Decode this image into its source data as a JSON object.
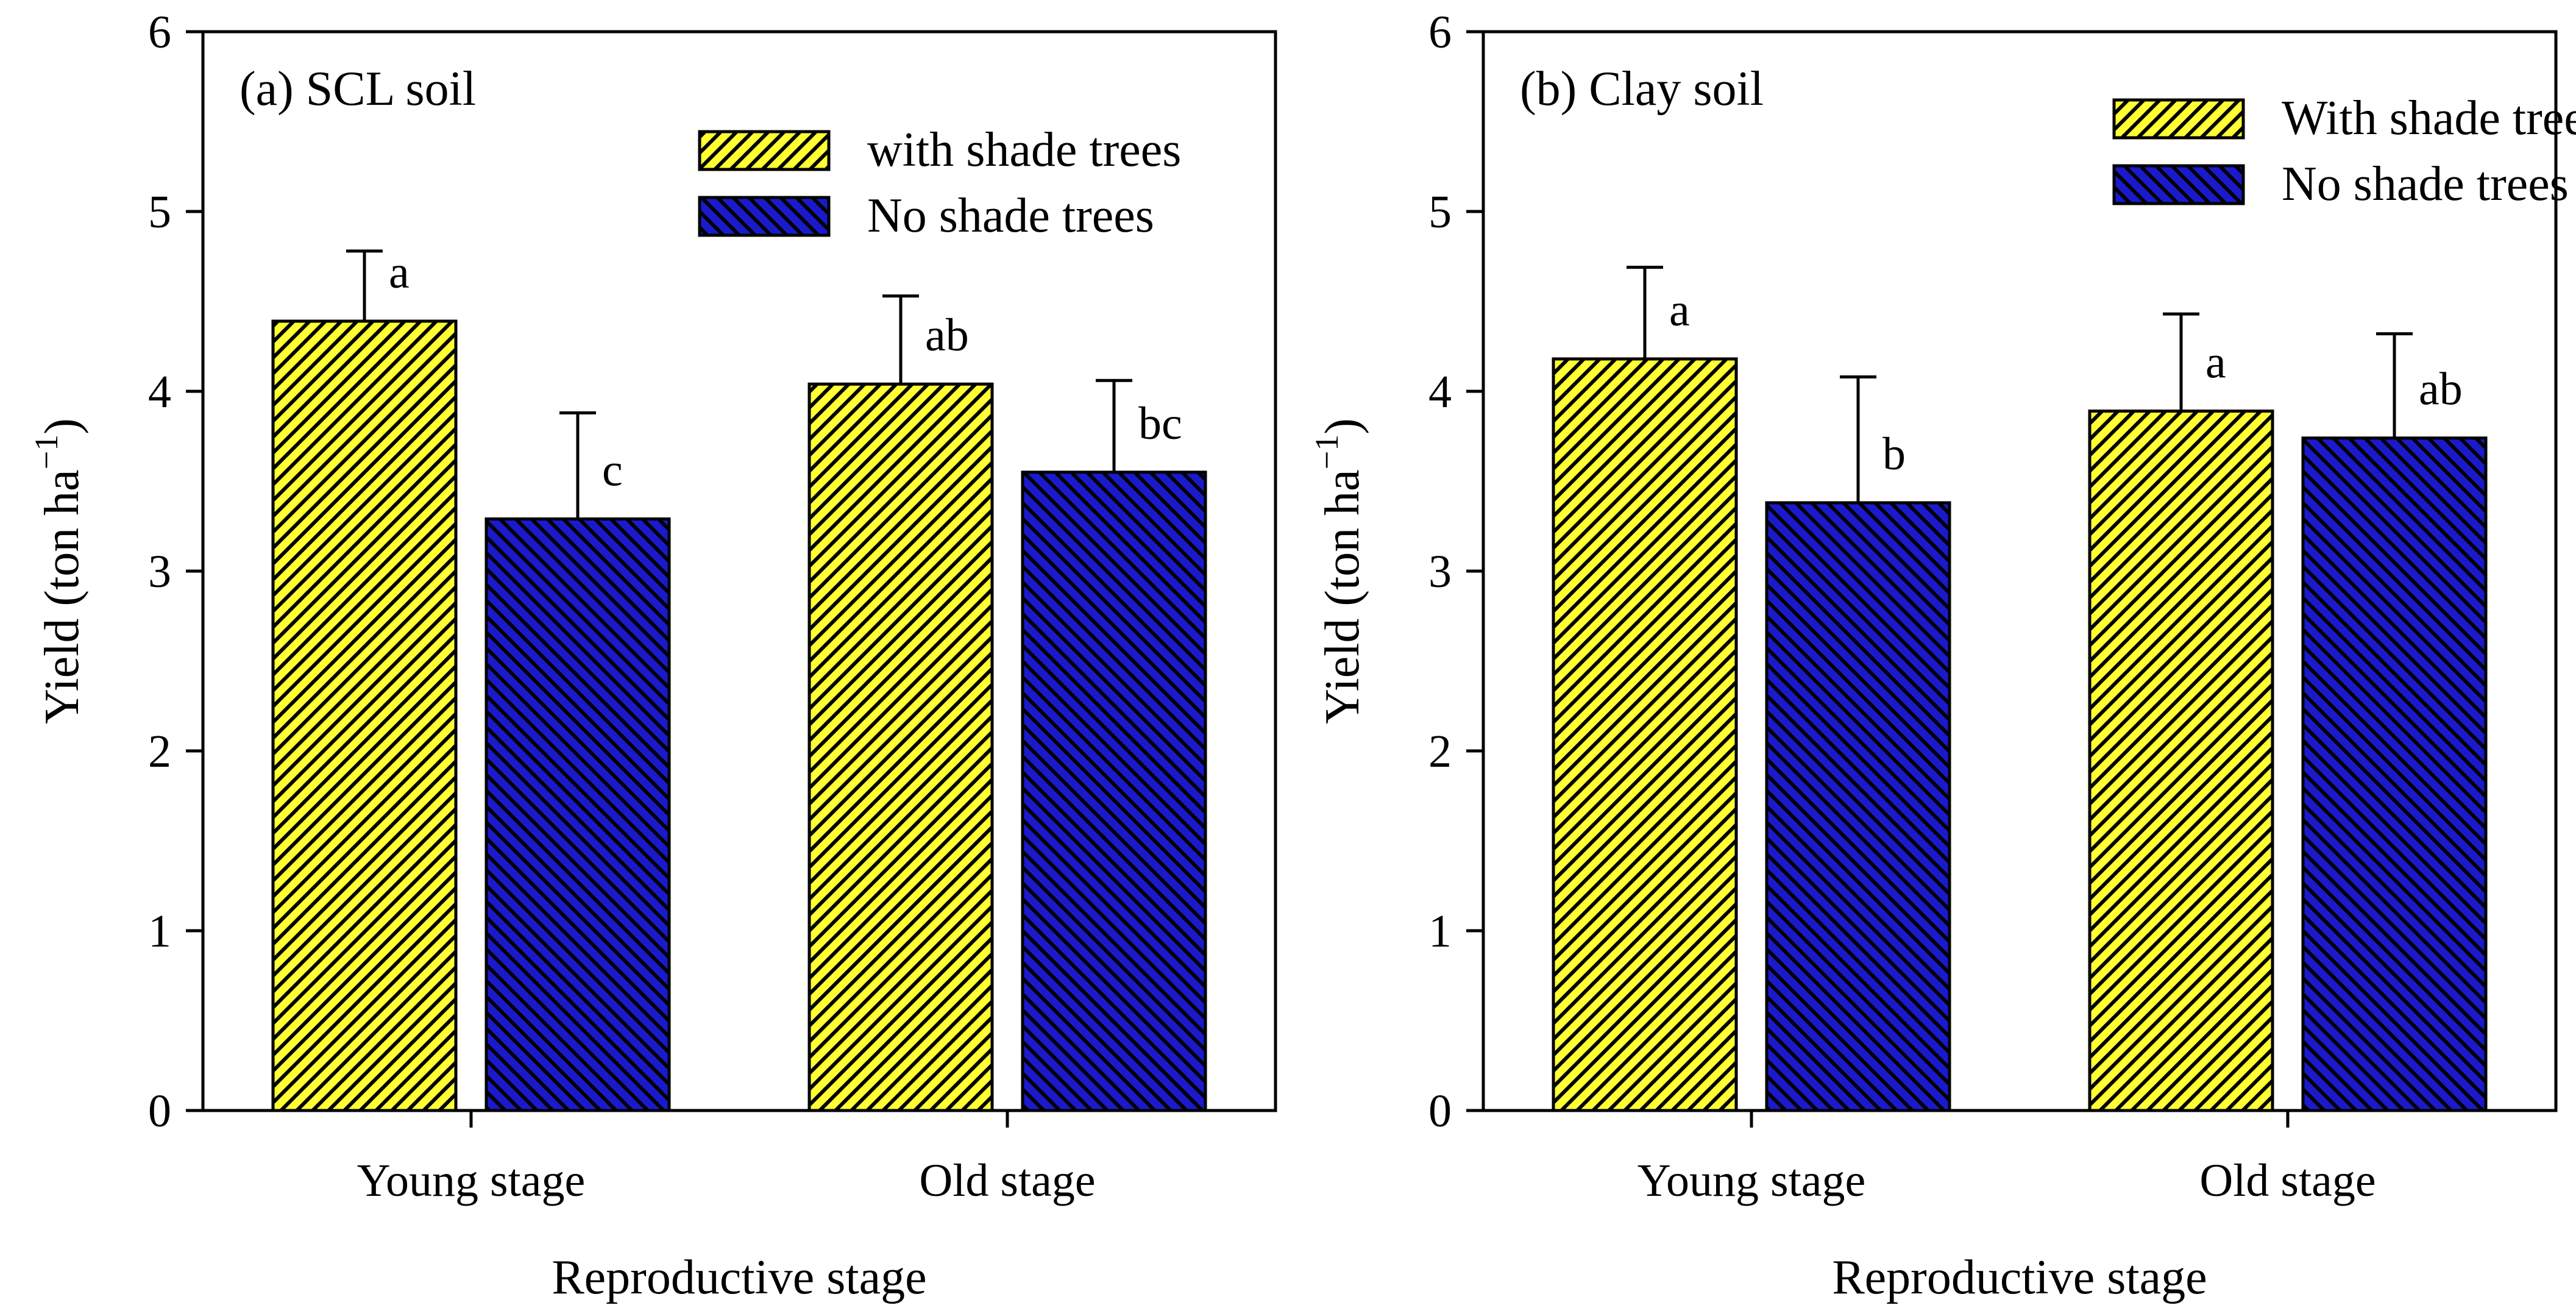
{
  "chart_data": [
    {
      "type": "bar",
      "title": "(a) SCL soil",
      "xlabel": "Reproductive stage",
      "ylabel": "Yield (ton ha",
      "ylabel_sup": "−1",
      "ylabel_close": ")",
      "ylim": [
        0,
        6
      ],
      "yticks": [
        "0",
        "1",
        "2",
        "3",
        "4",
        "5",
        "6"
      ],
      "categories": [
        "Young stage",
        "Old stage"
      ],
      "legend_position": "top-right",
      "series": [
        {
          "name": "with shade trees",
          "color": "#ffff33",
          "values": [
            4.39,
            4.04
          ],
          "errors": [
            0.39,
            0.49
          ],
          "letters": [
            "a",
            "ab"
          ]
        },
        {
          "name": "No shade trees",
          "color": "#1a1acc",
          "values": [
            3.29,
            3.55
          ],
          "errors": [
            0.59,
            0.51
          ],
          "letters": [
            "c",
            "bc"
          ]
        }
      ]
    },
    {
      "type": "bar",
      "title": "(b) Clay soil",
      "xlabel": "Reproductive stage",
      "ylabel": "Yield (ton ha",
      "ylabel_sup": "−1",
      "ylabel_close": ")",
      "ylim": [
        0,
        6
      ],
      "yticks": [
        "0",
        "1",
        "2",
        "3",
        "4",
        "5",
        "6"
      ],
      "categories": [
        "Young stage",
        "Old stage"
      ],
      "legend_position": "top-right",
      "series": [
        {
          "name": "With shade trees",
          "color": "#ffff33",
          "values": [
            4.18,
            3.89
          ],
          "errors": [
            0.51,
            0.54
          ],
          "letters": [
            "a",
            "a"
          ]
        },
        {
          "name": "No shade trees",
          "color": "#1a1acc",
          "values": [
            3.38,
            3.74
          ],
          "errors": [
            0.7,
            0.58
          ],
          "letters": [
            "b",
            "ab"
          ]
        }
      ]
    }
  ]
}
